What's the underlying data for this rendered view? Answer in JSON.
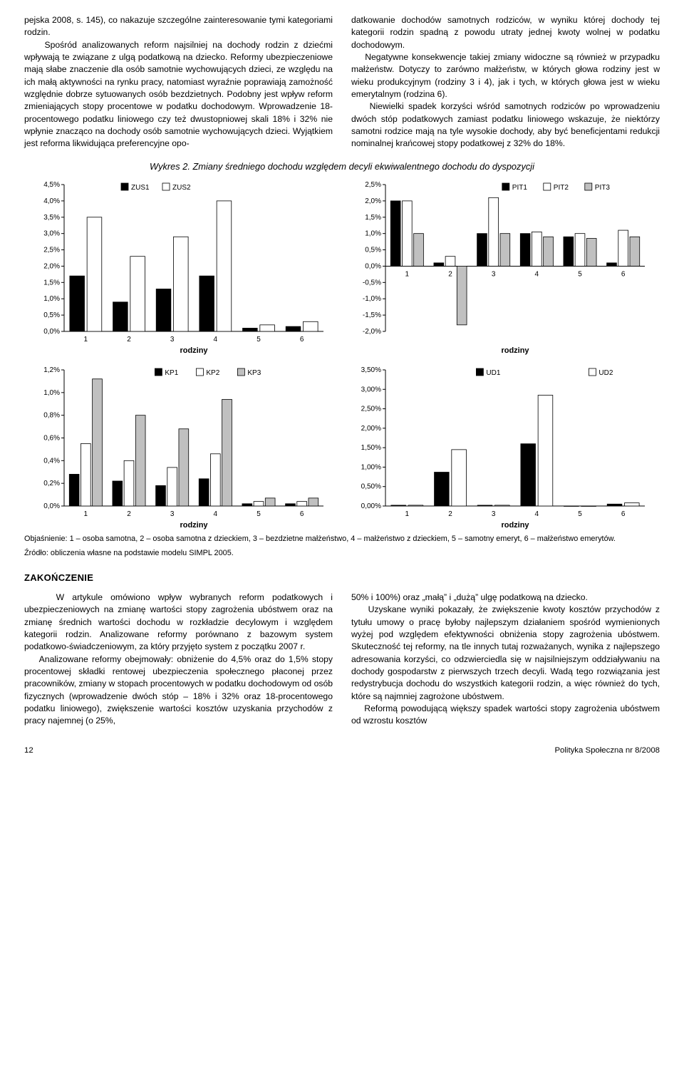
{
  "text": {
    "para_left": "pejska 2008, s. 145), co nakazuje szczególne zainteresowanie tymi kategoriami rodzin.\n    Spośród analizowanych reform najsilniej na dochody rodzin z dziećmi wpływają te związane z ulgą podatkową na dziecko. Reformy ubezpieczeniowe mają słabe znaczenie dla osób samotnie wychowujących dzieci, ze względu na ich małą aktywności na rynku pracy, natomiast wyraźnie poprawiają zamożność względnie dobrze sytuowanych osób bezdzietnych. Podobny jest wpływ reform zmieniających stopy procentowe w podatku dochodowym. Wprowadzenie 18-procentowego podatku liniowego czy też dwustopniowej skali 18% i 32% nie wpłynie znacząco na dochody osób samotnie wychowujących dzieci. Wyjątkiem jest reforma likwidująca preferencyjne opo-",
    "para_right": "datkowanie dochodów samotnych rodziców, w wyniku której dochody tej kategorii rodzin spadną z powodu utraty jednej kwoty wolnej w podatku dochodowym.\n    Negatywne konsekwencje takiej zmiany widoczne są również w przypadku małżeństw. Dotyczy to zarówno małżeństw, w których głowa rodziny jest w wieku produkcyjnym (rodziny 3 i 4), jak i tych, w których głowa jest w wieku emerytalnym (rodzina 6).\n    Niewielki spadek korzyści wśród samotnych rodziców po wprowadzeniu dwóch stóp podatkowych zamiast podatku liniowego wskazuje, że niektórzy samotni rodzice mają na tyle wysokie dochody, aby być beneficjentami redukcji nominalnej krańcowej stopy podatkowej z 32% do 18%.",
    "chart_title": "Wykres 2. Zmiany średniego dochodu względem decyli ekwiwalentnego dochodu do dyspozycji",
    "explain": "Objaśnienie: 1 – osoba samotna, 2 – osoba samotna z dzieckiem, 3 – bezdzietne małżeństwo, 4 – małżeństwo z dzieckiem, 5 – samotny emeryt, 6 – małżeństwo emerytów.",
    "source": "Źródło: obliczenia własne na podstawie modelu SIMPL 2005.",
    "zak_head": "ZAKOŃCZENIE",
    "zak_left": "    W artykule omówiono wpływ wybranych reform podatkowych i ubezpieczeniowych na zmianę wartości stopy zagrożenia ubóstwem oraz na zmianę średnich wartości dochodu w rozkładzie decylowym i względem kategorii rodzin. Analizowane reformy porównano z bazowym system podatkowo-świadczeniowym, za który przyjęto system z początku 2007 r.\n    Analizowane reformy obejmowały: obniżenie do 4,5% oraz do 1,5% stopy procentowej składki rentowej ubezpieczenia społecznego płaconej przez pracowników, zmiany w stopach procentowych w podatku dochodowym od osób fizycznych (wprowadzenie dwóch stóp – 18% i 32% oraz 18-procentowego podatku liniowego), zwiększenie wartości kosztów uzyskania przychodów z pracy najemnej (o 25%,",
    "zak_right": "50% i 100%) oraz „małą” i „dużą” ulgę podatkową na dziecko.\n    Uzyskane wyniki pokazały, że zwiększenie kwoty kosztów przychodów z tytułu umowy o pracę byłoby najlepszym działaniem spośród wymienionych wyżej pod względem efektywności obniżenia stopy zagrożenia ubóstwem. Skuteczność tej reformy, na tle innych tutaj rozważanych, wynika z najlepszego adresowania korzyści, co odzwierciedla się w najsilniejszym oddziaływaniu na dochody gospodarstw z pierwszych trzech decyli. Wadą tego rozwiązania jest redystrybucja dochodu do wszystkich kategorii rodzin, a więc również do tych, które są najmniej zagrożone ubóstwem.\n    Reformą powodującą większy spadek wartości stopy zagrożenia ubóstwem od wzrostu kosztów",
    "page_num": "12",
    "page_src": "Polityka Społeczna nr 8/2008"
  },
  "charts": {
    "palette": {
      "black": "#000000",
      "white": "#ffffff",
      "gray": "#c0c0c0",
      "axis": "#000000",
      "bg": "#ffffff",
      "text": "#000000"
    },
    "font": {
      "family": "Arial",
      "label_size": 11,
      "tick_size": 10,
      "legend_size": 10
    },
    "bar_geom": {
      "group_gap": 0.5,
      "bar_rel_width": 0.85,
      "stroke": "#000000",
      "stroke_w": 0.8
    },
    "panels": [
      {
        "id": "zus",
        "xlabel": "rodziny",
        "categories": [
          "1",
          "2",
          "3",
          "4",
          "5",
          "6"
        ],
        "series": [
          {
            "name": "ZUS1",
            "fill": "black"
          },
          {
            "name": "ZUS2",
            "fill": "white"
          }
        ],
        "ymin": 0.0,
        "ymax": 4.5,
        "ystep": 0.5,
        "yformat": "pct1",
        "values": [
          [
            1.7,
            0.9,
            1.3,
            1.7,
            0.1,
            0.15
          ],
          [
            3.5,
            2.3,
            2.9,
            4.0,
            0.2,
            0.3
          ]
        ]
      },
      {
        "id": "pit",
        "xlabel": "rodziny",
        "categories": [
          "1",
          "2",
          "3",
          "4",
          "5",
          "6"
        ],
        "series": [
          {
            "name": "PIT1",
            "fill": "black"
          },
          {
            "name": "PIT2",
            "fill": "white"
          },
          {
            "name": "PIT3",
            "fill": "gray"
          }
        ],
        "ymin": -2.0,
        "ymax": 2.5,
        "ystep": 0.5,
        "yformat": "pct1",
        "values": [
          [
            2.0,
            0.1,
            1.0,
            1.0,
            0.9,
            0.1
          ],
          [
            2.0,
            0.3,
            2.1,
            1.05,
            1.0,
            1.1
          ],
          [
            1.0,
            -1.8,
            1.0,
            0.9,
            0.85,
            0.9
          ]
        ]
      },
      {
        "id": "kp",
        "xlabel": "rodziny",
        "categories": [
          "1",
          "2",
          "3",
          "4",
          "5",
          "6"
        ],
        "series": [
          {
            "name": "KP1",
            "fill": "black"
          },
          {
            "name": "KP2",
            "fill": "white"
          },
          {
            "name": "KP3",
            "fill": "gray"
          }
        ],
        "ymin": 0.0,
        "ymax": 1.2,
        "ystep": 0.2,
        "yformat": "pct1",
        "values": [
          [
            0.28,
            0.22,
            0.18,
            0.24,
            0.02,
            0.02
          ],
          [
            0.55,
            0.4,
            0.34,
            0.46,
            0.04,
            0.04
          ],
          [
            1.12,
            0.8,
            0.68,
            0.94,
            0.07,
            0.07
          ]
        ]
      },
      {
        "id": "ud",
        "xlabel": "rodziny",
        "categories": [
          "1",
          "2",
          "3",
          "4",
          "5",
          "6"
        ],
        "series": [
          {
            "name": "UD1",
            "fill": "black"
          },
          {
            "name": "UD2",
            "fill": "white"
          }
        ],
        "ymin": 0.0,
        "ymax": 3.5,
        "ystep": 0.5,
        "yformat": "pct2",
        "values": [
          [
            0.02,
            0.87,
            0.02,
            1.6,
            0.0,
            0.05
          ],
          [
            0.02,
            1.45,
            0.02,
            2.85,
            0.0,
            0.08
          ]
        ]
      }
    ]
  }
}
